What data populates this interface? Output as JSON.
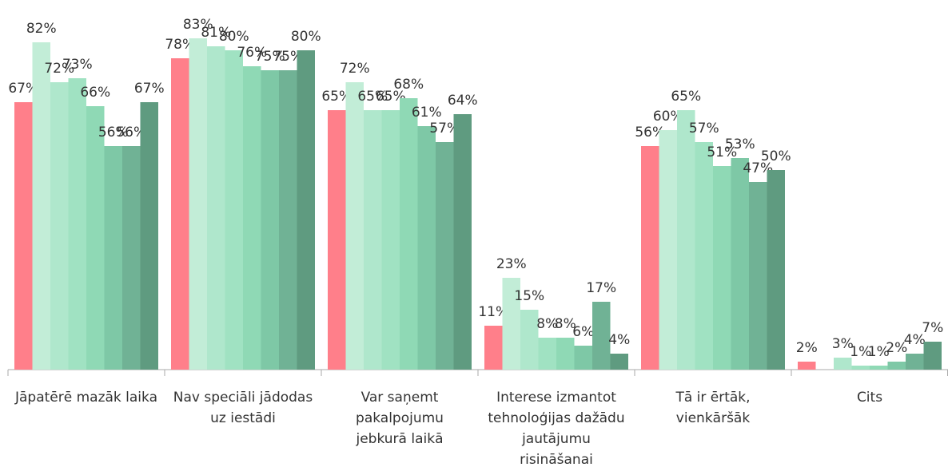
{
  "chart_data": {
    "type": "bar",
    "categories": [
      "Jāpatērē mazāk laika",
      "Nav speciāli jādodas\nuz iestādi",
      "Var saņemt\npakalpojumu\njebkurā laikā",
      "Interese izmantot\ntehnoloģijas dažādu\njautājumu\nrisināšanai",
      "Tā ir ērtāk,\nvienkāršāk",
      "Cits"
    ],
    "ylim": [
      0,
      90
    ],
    "series": [
      {
        "color": "#ff7f8a",
        "values": [
          67,
          78,
          65,
          11,
          56,
          2
        ],
        "value_labels": [
          "67%",
          "78%",
          "65%",
          "11%",
          "56%",
          "2%"
        ]
      },
      {
        "color": "#c2edd7",
        "values": [
          82,
          83,
          72,
          23,
          60,
          null
        ],
        "value_labels": [
          "82%",
          "83%",
          "72%",
          "23%",
          "60%",
          null
        ]
      },
      {
        "color": "#afe7cc",
        "values": [
          72,
          81,
          65,
          15,
          65,
          3
        ],
        "value_labels": [
          "72%",
          "81%",
          "65%",
          "15%",
          "65%",
          "3%"
        ]
      },
      {
        "color": "#a0e2c2",
        "values": [
          73,
          80,
          65,
          8,
          57,
          1
        ],
        "value_labels": [
          "73%",
          "80%",
          "65%",
          "8%",
          "57%",
          "1%"
        ]
      },
      {
        "color": "#8fd9b5",
        "values": [
          66,
          76,
          68,
          8,
          51,
          1
        ],
        "value_labels": [
          "66%",
          "76%",
          "68%",
          "8%",
          "51%",
          "1%"
        ]
      },
      {
        "color": "#7ec8a6",
        "values": [
          56,
          75,
          61,
          6,
          53,
          2
        ],
        "value_labels": [
          "56%",
          "75%",
          "61%",
          "6%",
          "53%",
          "2%"
        ]
      },
      {
        "color": "#70b295",
        "values": [
          56,
          75,
          57,
          17,
          47,
          4
        ],
        "value_labels": [
          "56%",
          "75%",
          "57%",
          "17%",
          "47%",
          "4%"
        ]
      },
      {
        "color": "#5f9b80",
        "values": [
          67,
          80,
          64,
          4,
          50,
          7
        ],
        "value_labels": [
          "67%",
          "80%",
          "64%",
          "4%",
          "50%",
          "7%"
        ]
      }
    ]
  }
}
